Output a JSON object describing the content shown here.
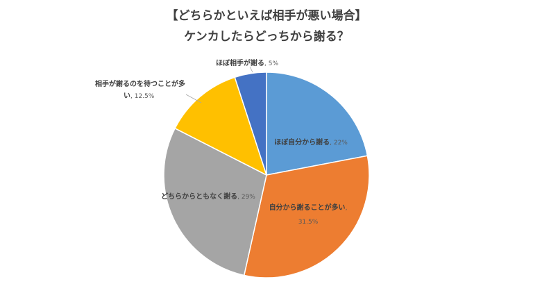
{
  "chart_data": {
    "type": "pie",
    "title": "【どちらかといえば相手が悪い場合】",
    "subtitle": "ケンカしたらどっちから謝る？",
    "start_angle_deg": 0,
    "direction": "clockwise",
    "slices": [
      {
        "label": "ほぼ自分から謝る",
        "value": 22,
        "value_label": "22%",
        "color": "#5B9BD5"
      },
      {
        "label": "自分から謝ることが多い",
        "value": 31.5,
        "value_label": "31.5%",
        "color": "#ED7D31"
      },
      {
        "label": "どちらからともなく謝る",
        "value": 29,
        "value_label": "29%",
        "color": "#A5A5A5"
      },
      {
        "label_line1": "相手が謝るのを待つことが多",
        "label_line2": "い",
        "value": 12.5,
        "value_label": "12.5%",
        "color": "#FFC000"
      },
      {
        "label": "ほぼ相手が謝る",
        "value": 5,
        "value_label": "5%",
        "color": "#4472C4"
      }
    ],
    "legend": "none"
  }
}
